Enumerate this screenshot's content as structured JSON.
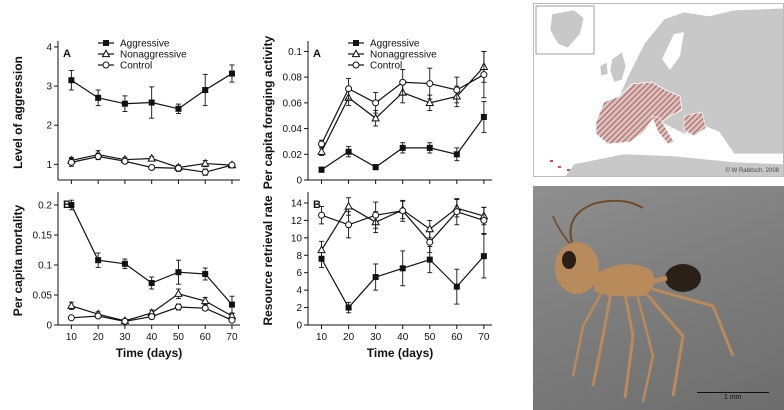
{
  "chart_data": [
    {
      "type": "line",
      "panel_letter": "A",
      "ylabel": "Level of aggression",
      "xlabel": "",
      "x": [
        10,
        20,
        30,
        40,
        50,
        60,
        70
      ],
      "xlim": [
        5,
        73
      ],
      "ylim": [
        0.6,
        4.05
      ],
      "yticks": [
        1,
        2,
        3,
        4
      ],
      "show_x_ticklabels": false,
      "series": [
        {
          "name": "Aggressive",
          "marker": "square",
          "values": [
            3.15,
            2.7,
            2.55,
            2.58,
            2.42,
            2.9,
            3.32
          ],
          "errors": [
            0.25,
            0.2,
            0.2,
            0.4,
            0.12,
            0.4,
            0.22
          ]
        },
        {
          "name": "Nonaggressive",
          "marker": "triangle",
          "values": [
            1.1,
            1.25,
            1.12,
            1.15,
            0.92,
            1.02,
            0.98
          ],
          "errors": [
            0.08,
            0.1,
            0.06,
            0.05,
            0.06,
            0.08,
            0.04
          ]
        },
        {
          "name": "Control",
          "marker": "circle",
          "values": [
            1.05,
            1.2,
            1.08,
            0.92,
            0.9,
            0.8,
            0.98
          ],
          "errors": [
            0.1,
            0.08,
            0.06,
            0.05,
            0.08,
            0.08,
            0.04
          ]
        }
      ],
      "legend": "top-center"
    },
    {
      "type": "line",
      "panel_letter": "B",
      "ylabel": "Per capita mortality",
      "xlabel": "Time (days)",
      "x": [
        10,
        20,
        30,
        40,
        50,
        60,
        70
      ],
      "xlim": [
        5,
        73
      ],
      "ylim": [
        0,
        0.215
      ],
      "yticks": [
        0,
        0.05,
        0.1,
        0.15,
        0.2
      ],
      "ytick_labels": [
        "0",
        "0.05",
        "0.1",
        "0.15",
        "0.2"
      ],
      "show_x_ticklabels": true,
      "series": [
        {
          "name": "Aggressive",
          "marker": "square",
          "values": [
            0.2,
            0.108,
            0.102,
            0.07,
            0.088,
            0.085,
            0.034
          ],
          "errors": [
            0.008,
            0.012,
            0.008,
            0.01,
            0.02,
            0.01,
            0.014
          ]
        },
        {
          "name": "Nonaggressive",
          "marker": "triangle",
          "values": [
            0.032,
            0.018,
            0.007,
            0.02,
            0.052,
            0.04,
            0.015
          ],
          "errors": [
            0.006,
            0.004,
            0.003,
            0.005,
            0.008,
            0.006,
            0.004
          ]
        },
        {
          "name": "Control",
          "marker": "circle",
          "values": [
            0.012,
            0.015,
            0.006,
            0.014,
            0.03,
            0.028,
            0.008
          ],
          "errors": [
            0.003,
            0.003,
            0.002,
            0.004,
            0.005,
            0.004,
            0.003
          ]
        }
      ]
    },
    {
      "type": "line",
      "panel_letter": "A",
      "ylabel": "Per capita foraging activity",
      "xlabel": "",
      "x": [
        10,
        20,
        30,
        40,
        50,
        60,
        70
      ],
      "xlim": [
        5,
        73
      ],
      "ylim": [
        0,
        0.105
      ],
      "yticks": [
        0,
        0.02,
        0.04,
        0.06,
        0.08,
        0.1
      ],
      "ytick_labels": [
        "0",
        "0.02",
        "0.04",
        "0.06",
        "0.08",
        "0.1"
      ],
      "show_x_ticklabels": false,
      "series": [
        {
          "name": "Aggressive",
          "marker": "square",
          "values": [
            0.008,
            0.022,
            0.01,
            0.025,
            0.025,
            0.02,
            0.049
          ],
          "errors": [
            0.002,
            0.004,
            0.002,
            0.004,
            0.004,
            0.005,
            0.012
          ]
        },
        {
          "name": "Nonaggressive",
          "marker": "triangle",
          "values": [
            0.022,
            0.064,
            0.048,
            0.068,
            0.06,
            0.065,
            0.088
          ],
          "errors": [
            0.003,
            0.006,
            0.006,
            0.008,
            0.006,
            0.008,
            0.012
          ]
        },
        {
          "name": "Control",
          "marker": "circle",
          "values": [
            0.028,
            0.071,
            0.06,
            0.076,
            0.075,
            0.07,
            0.082
          ],
          "errors": [
            0.003,
            0.008,
            0.008,
            0.01,
            0.012,
            0.01,
            0.018
          ]
        }
      ],
      "legend": "top-center"
    },
    {
      "type": "line",
      "panel_letter": "B",
      "ylabel": "Resource retrieval rate",
      "xlabel": "Time (days)",
      "x": [
        10,
        20,
        30,
        40,
        50,
        60,
        70
      ],
      "xlim": [
        5,
        73
      ],
      "ylim": [
        0,
        14.8
      ],
      "yticks": [
        0,
        2,
        4,
        6,
        8,
        10,
        12,
        14
      ],
      "show_x_ticklabels": true,
      "series": [
        {
          "name": "Aggressive",
          "marker": "square",
          "values": [
            7.6,
            2.0,
            5.5,
            6.5,
            7.5,
            4.4,
            7.9
          ],
          "errors": [
            1.0,
            0.6,
            1.5,
            2.0,
            1.5,
            2.0,
            2.5
          ]
        },
        {
          "name": "Nonaggressive",
          "marker": "triangle",
          "values": [
            8.6,
            13.6,
            11.8,
            13.2,
            11.0,
            13.4,
            12.5
          ],
          "errors": [
            1.0,
            1.0,
            1.2,
            1.0,
            1.0,
            1.0,
            1.0
          ]
        },
        {
          "name": "Control",
          "marker": "circle",
          "values": [
            12.6,
            11.5,
            12.6,
            13.1,
            9.5,
            13.0,
            12.0
          ],
          "errors": [
            1.0,
            1.5,
            1.5,
            1.2,
            1.2,
            1.5,
            1.5
          ]
        }
      ]
    }
  ],
  "map": {
    "credit": "© W Rabitsch, 2008",
    "colors": {
      "sea": "#ffffff",
      "land": "#c8c8c8",
      "border": "#ffffff",
      "range": "#e0483a"
    }
  },
  "photo": {
    "scale_label": "1 mm",
    "colors": {
      "background": "#7e7e7e",
      "ant": "#b88a5c",
      "ant_dark": "#6e4a2a",
      "abdomen": "#2a2018"
    }
  }
}
